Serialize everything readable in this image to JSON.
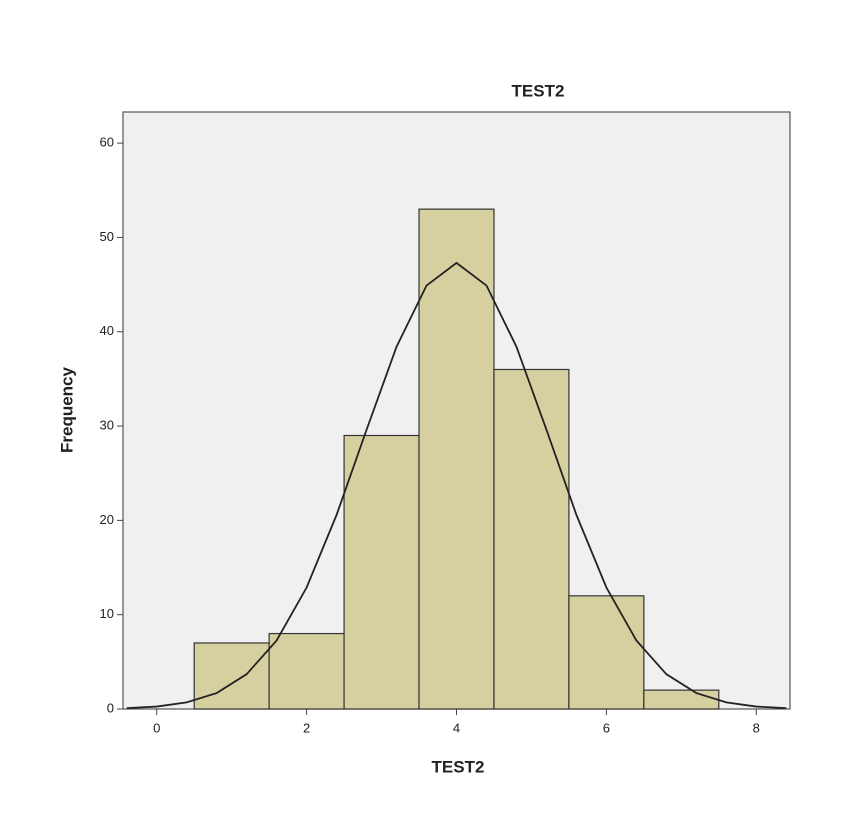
{
  "chart_data": {
    "type": "histogram",
    "title": "TEST2",
    "x_label": "TEST2",
    "y_label": "Frequency",
    "bins": [
      0.5,
      1.5,
      2.5,
      3.5,
      4.5,
      5.5,
      6.5,
      7.5
    ],
    "counts": [
      7,
      8,
      29,
      53,
      36,
      12,
      2
    ],
    "color": "#d6d0a0",
    "curve": {
      "x": [
        -0.4,
        0,
        0.4,
        0.8,
        1.2,
        1.6,
        2,
        2.4,
        2.8,
        3.2,
        3.6,
        4,
        4.4,
        4.8,
        5.2,
        5.6,
        6,
        6.4,
        6.8,
        7.2,
        7.6,
        8,
        8.4
      ],
      "values": [
        0.09,
        0.26,
        0.7,
        1.69,
        3.69,
        7.27,
        12.88,
        20.58,
        29.61,
        38.41,
        44.9,
        47.3,
        44.9,
        38.41,
        29.61,
        20.58,
        12.88,
        7.27,
        3.69,
        1.69,
        0.7,
        0.26,
        0.09
      ],
      "color": "#222222"
    },
    "xlim": [
      -0.45,
      8.45
    ],
    "ylim": [
      0,
      63.3
    ],
    "xticks": [
      0,
      2,
      4,
      6,
      8
    ],
    "yticks": [
      0,
      10,
      20,
      30,
      40,
      50,
      60
    ],
    "grid": false
  }
}
